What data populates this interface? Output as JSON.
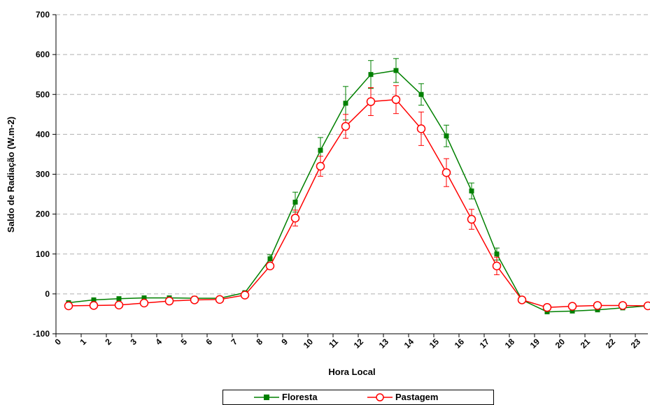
{
  "chart_data": {
    "type": "line",
    "title": "",
    "xlabel": "Hora Local",
    "ylabel": "Saldo de Radiação (W.m-2)",
    "x": [
      0.5,
      1.5,
      2.5,
      3.5,
      4.5,
      5.5,
      6.5,
      7.5,
      8.5,
      9.5,
      10.5,
      11.5,
      12.5,
      13.5,
      14.5,
      15.5,
      16.5,
      17.5,
      18.5,
      19.5,
      20.5,
      21.5,
      22.5,
      23.5
    ],
    "xticks": [
      "0",
      "1",
      "2",
      "3",
      "4",
      "5",
      "6",
      "7",
      "8",
      "9",
      "10",
      "11",
      "12",
      "13",
      "14",
      "15",
      "16",
      "17",
      "18",
      "19",
      "20",
      "21",
      "22",
      "23"
    ],
    "xlim": [
      0,
      23.5
    ],
    "ylim": [
      -100,
      700
    ],
    "yticks": [
      "-100",
      "0",
      "100",
      "200",
      "300",
      "400",
      "500",
      "600",
      "700"
    ],
    "grid": "horizontal dashed",
    "legend_position": "bottom",
    "series": [
      {
        "name": "Floresta",
        "color": "#008000",
        "marker": "square",
        "values": [
          -22,
          -15,
          -12,
          -10,
          -10,
          -11,
          -11,
          3,
          88,
          230,
          360,
          478,
          550,
          560,
          500,
          396,
          258,
          100,
          -15,
          -45,
          -43,
          -40,
          -35,
          -30
        ],
        "error": [
          0,
          0,
          0,
          0,
          0,
          0,
          0,
          3,
          10,
          25,
          32,
          42,
          35,
          30,
          27,
          27,
          20,
          15,
          0,
          0,
          0,
          0,
          0,
          0
        ]
      },
      {
        "name": "Pastagem",
        "color": "#ff0000",
        "marker": "circle-open",
        "values": [
          -30,
          -29,
          -28,
          -23,
          -18,
          -15,
          -14,
          -3,
          70,
          190,
          320,
          420,
          482,
          487,
          414,
          304,
          187,
          70,
          -15,
          -34,
          -31,
          -29,
          -29,
          -30
        ],
        "error": [
          0,
          0,
          0,
          0,
          0,
          0,
          0,
          0,
          5,
          20,
          25,
          30,
          35,
          35,
          42,
          35,
          25,
          22,
          0,
          0,
          0,
          0,
          0,
          0
        ]
      }
    ]
  }
}
